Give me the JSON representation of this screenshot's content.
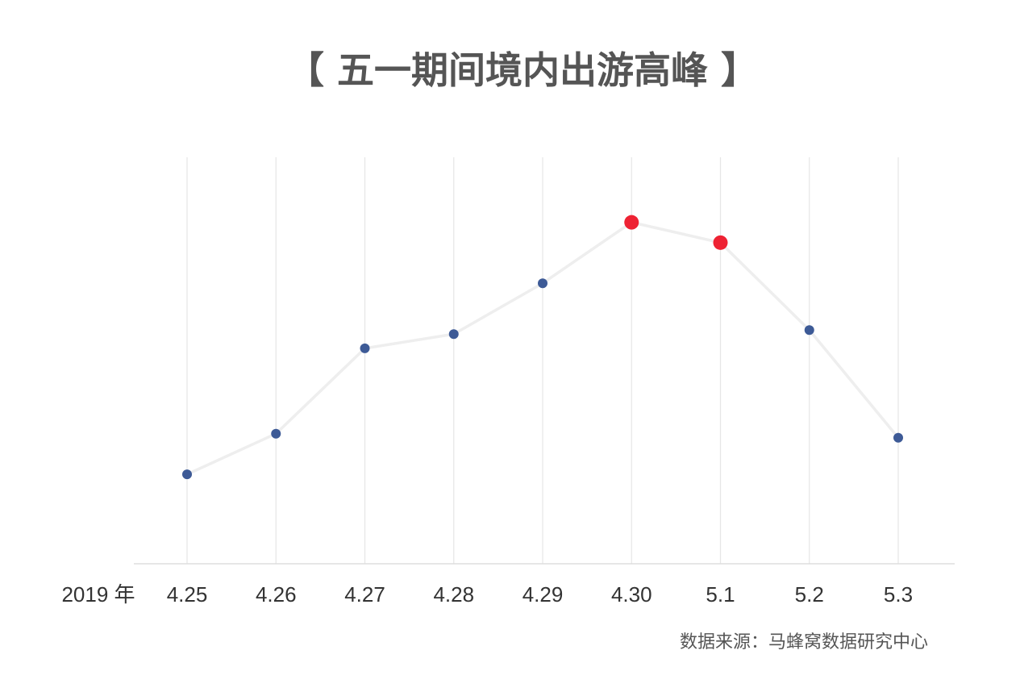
{
  "chart_data": {
    "type": "line",
    "title": "【 五一期间境内出游高峰 】",
    "year_label": "2019 年",
    "source": "数据来源：马蜂窝数据研究中心",
    "categories": [
      "4.25",
      "4.26",
      "4.27",
      "4.28",
      "4.29",
      "4.30",
      "5.1",
      "5.2",
      "5.3"
    ],
    "series": [
      {
        "values": [
          22,
          32,
          53,
          56.5,
          69,
          84,
          79,
          57.5,
          31
        ]
      }
    ],
    "highlighted_categories": [
      "4.30",
      "5.1"
    ],
    "ylim": [
      0,
      100
    ],
    "grid": "vertical",
    "colors": {
      "point": "#3d5a96",
      "highlight_point": "#ee2233",
      "line": "#eeeeee",
      "grid": "#e6e6e6",
      "title": "#555555"
    }
  }
}
